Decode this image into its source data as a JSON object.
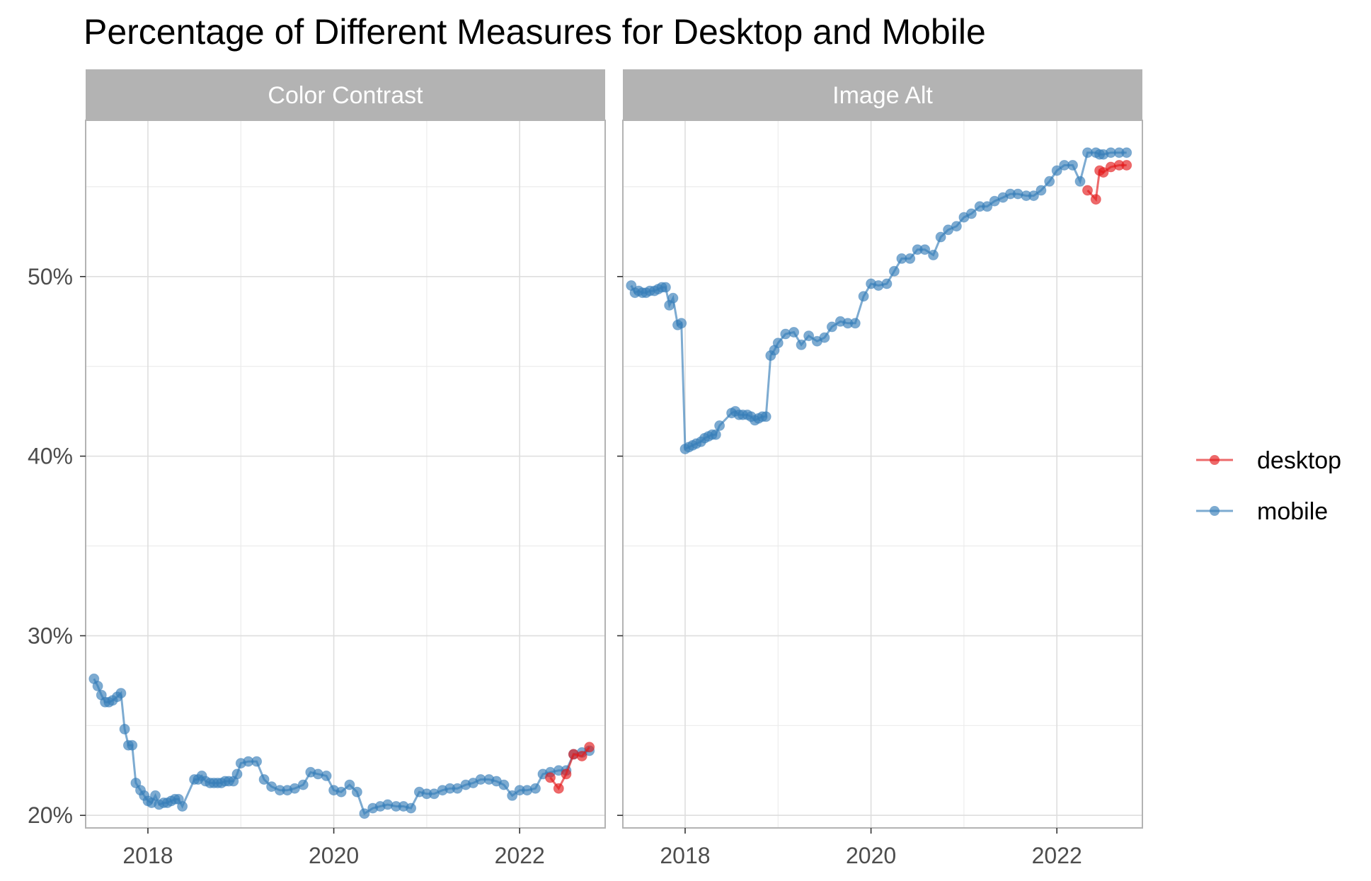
{
  "chart_data": {
    "type": "line",
    "title": "Percentage of Different Measures for Desktop and Mobile",
    "xlabel": "",
    "ylabel": "",
    "x_range": [
      2017.33,
      2022.92
    ],
    "ylim": [
      19.3,
      58.7
    ],
    "y_ticks": [
      20,
      30,
      40,
      50
    ],
    "y_tick_labels": [
      "20%",
      "30%",
      "40%",
      "50%"
    ],
    "x_ticks": [
      2018,
      2020,
      2022
    ],
    "x_tick_labels": [
      "2018",
      "2020",
      "2022"
    ],
    "grid": true,
    "legend_position": "right",
    "series_styles": [
      {
        "name": "desktop",
        "color": "#E41A1C"
      },
      {
        "name": "mobile",
        "color": "#377EB8"
      }
    ],
    "panels": [
      {
        "title": "Color Contrast",
        "series": [
          {
            "name": "desktop",
            "x": [
              2022.33,
              2022.42,
              2022.5,
              2022.58,
              2022.67,
              2022.75
            ],
            "y": [
              22.1,
              21.5,
              22.3,
              23.4,
              23.3,
              23.8
            ]
          },
          {
            "name": "mobile",
            "x": [
              2017.42,
              2017.46,
              2017.5,
              2017.54,
              2017.58,
              2017.62,
              2017.67,
              2017.71,
              2017.75,
              2017.79,
              2017.83,
              2017.87,
              2017.92,
              2017.96,
              2018.0,
              2018.04,
              2018.08,
              2018.12,
              2018.17,
              2018.21,
              2018.25,
              2018.29,
              2018.33,
              2018.37,
              2018.5,
              2018.54,
              2018.58,
              2018.62,
              2018.67,
              2018.71,
              2018.75,
              2018.79,
              2018.83,
              2018.87,
              2018.92,
              2018.96,
              2019.0,
              2019.08,
              2019.17,
              2019.25,
              2019.33,
              2019.42,
              2019.5,
              2019.58,
              2019.67,
              2019.75,
              2019.83,
              2019.92,
              2020.0,
              2020.08,
              2020.17,
              2020.25,
              2020.33,
              2020.42,
              2020.5,
              2020.58,
              2020.67,
              2020.75,
              2020.83,
              2020.92,
              2021.0,
              2021.08,
              2021.17,
              2021.25,
              2021.33,
              2021.42,
              2021.5,
              2021.58,
              2021.67,
              2021.75,
              2021.83,
              2021.92,
              2022.0,
              2022.08,
              2022.17,
              2022.25,
              2022.33,
              2022.42,
              2022.5,
              2022.58,
              2022.67,
              2022.75
            ],
            "y": [
              27.6,
              27.2,
              26.7,
              26.3,
              26.3,
              26.4,
              26.6,
              26.8,
              24.8,
              23.9,
              23.9,
              21.8,
              21.4,
              21.1,
              20.8,
              20.7,
              21.1,
              20.6,
              20.7,
              20.7,
              20.8,
              20.9,
              20.9,
              20.5,
              22.0,
              22.0,
              22.2,
              21.9,
              21.8,
              21.8,
              21.8,
              21.8,
              21.9,
              21.9,
              21.9,
              22.3,
              22.9,
              23.0,
              23.0,
              22.0,
              21.6,
              21.4,
              21.4,
              21.5,
              21.7,
              22.4,
              22.3,
              22.2,
              21.4,
              21.3,
              21.7,
              21.3,
              20.1,
              20.4,
              20.5,
              20.6,
              20.5,
              20.5,
              20.4,
              21.3,
              21.2,
              21.2,
              21.4,
              21.5,
              21.5,
              21.7,
              21.8,
              22.0,
              22.0,
              21.9,
              21.7,
              21.1,
              21.4,
              21.4,
              21.5,
              22.3,
              22.4,
              22.5,
              22.5,
              23.4,
              23.5,
              23.6
            ]
          }
        ]
      },
      {
        "title": "Image Alt",
        "series": [
          {
            "name": "desktop",
            "x": [
              2022.33,
              2022.42,
              2022.46,
              2022.5,
              2022.58,
              2022.67,
              2022.75
            ],
            "y": [
              54.8,
              54.3,
              55.9,
              55.8,
              56.1,
              56.2,
              56.2
            ]
          },
          {
            "name": "mobile",
            "x": [
              2017.42,
              2017.46,
              2017.5,
              2017.54,
              2017.58,
              2017.62,
              2017.67,
              2017.71,
              2017.75,
              2017.79,
              2017.83,
              2017.87,
              2017.92,
              2017.96,
              2018.0,
              2018.04,
              2018.08,
              2018.12,
              2018.17,
              2018.21,
              2018.25,
              2018.29,
              2018.33,
              2018.37,
              2018.5,
              2018.54,
              2018.58,
              2018.62,
              2018.67,
              2018.71,
              2018.75,
              2018.79,
              2018.83,
              2018.87,
              2018.92,
              2018.96,
              2019.0,
              2019.08,
              2019.17,
              2019.25,
              2019.33,
              2019.42,
              2019.5,
              2019.58,
              2019.67,
              2019.75,
              2019.83,
              2019.92,
              2020.0,
              2020.08,
              2020.17,
              2020.25,
              2020.33,
              2020.42,
              2020.5,
              2020.58,
              2020.67,
              2020.75,
              2020.83,
              2020.92,
              2021.0,
              2021.08,
              2021.17,
              2021.25,
              2021.33,
              2021.42,
              2021.5,
              2021.58,
              2021.67,
              2021.75,
              2021.83,
              2021.92,
              2022.0,
              2022.08,
              2022.17,
              2022.25,
              2022.33,
              2022.42,
              2022.46,
              2022.5,
              2022.58,
              2022.67,
              2022.75
            ],
            "y": [
              49.5,
              49.1,
              49.2,
              49.1,
              49.1,
              49.2,
              49.2,
              49.3,
              49.4,
              49.4,
              48.4,
              48.8,
              47.3,
              47.4,
              40.4,
              40.5,
              40.6,
              40.7,
              40.8,
              41.0,
              41.1,
              41.2,
              41.2,
              41.7,
              42.4,
              42.5,
              42.3,
              42.3,
              42.3,
              42.2,
              42.0,
              42.1,
              42.2,
              42.2,
              45.6,
              45.9,
              46.3,
              46.8,
              46.9,
              46.2,
              46.7,
              46.4,
              46.6,
              47.2,
              47.5,
              47.4,
              47.4,
              48.9,
              49.6,
              49.5,
              49.6,
              50.3,
              51.0,
              51.0,
              51.5,
              51.5,
              51.2,
              52.2,
              52.6,
              52.8,
              53.3,
              53.5,
              53.9,
              53.9,
              54.2,
              54.4,
              54.6,
              54.6,
              54.5,
              54.5,
              54.8,
              55.3,
              55.9,
              56.2,
              56.2,
              55.3,
              56.9,
              56.9,
              56.8,
              56.8,
              56.9,
              56.9,
              56.9
            ]
          }
        ]
      }
    ]
  }
}
